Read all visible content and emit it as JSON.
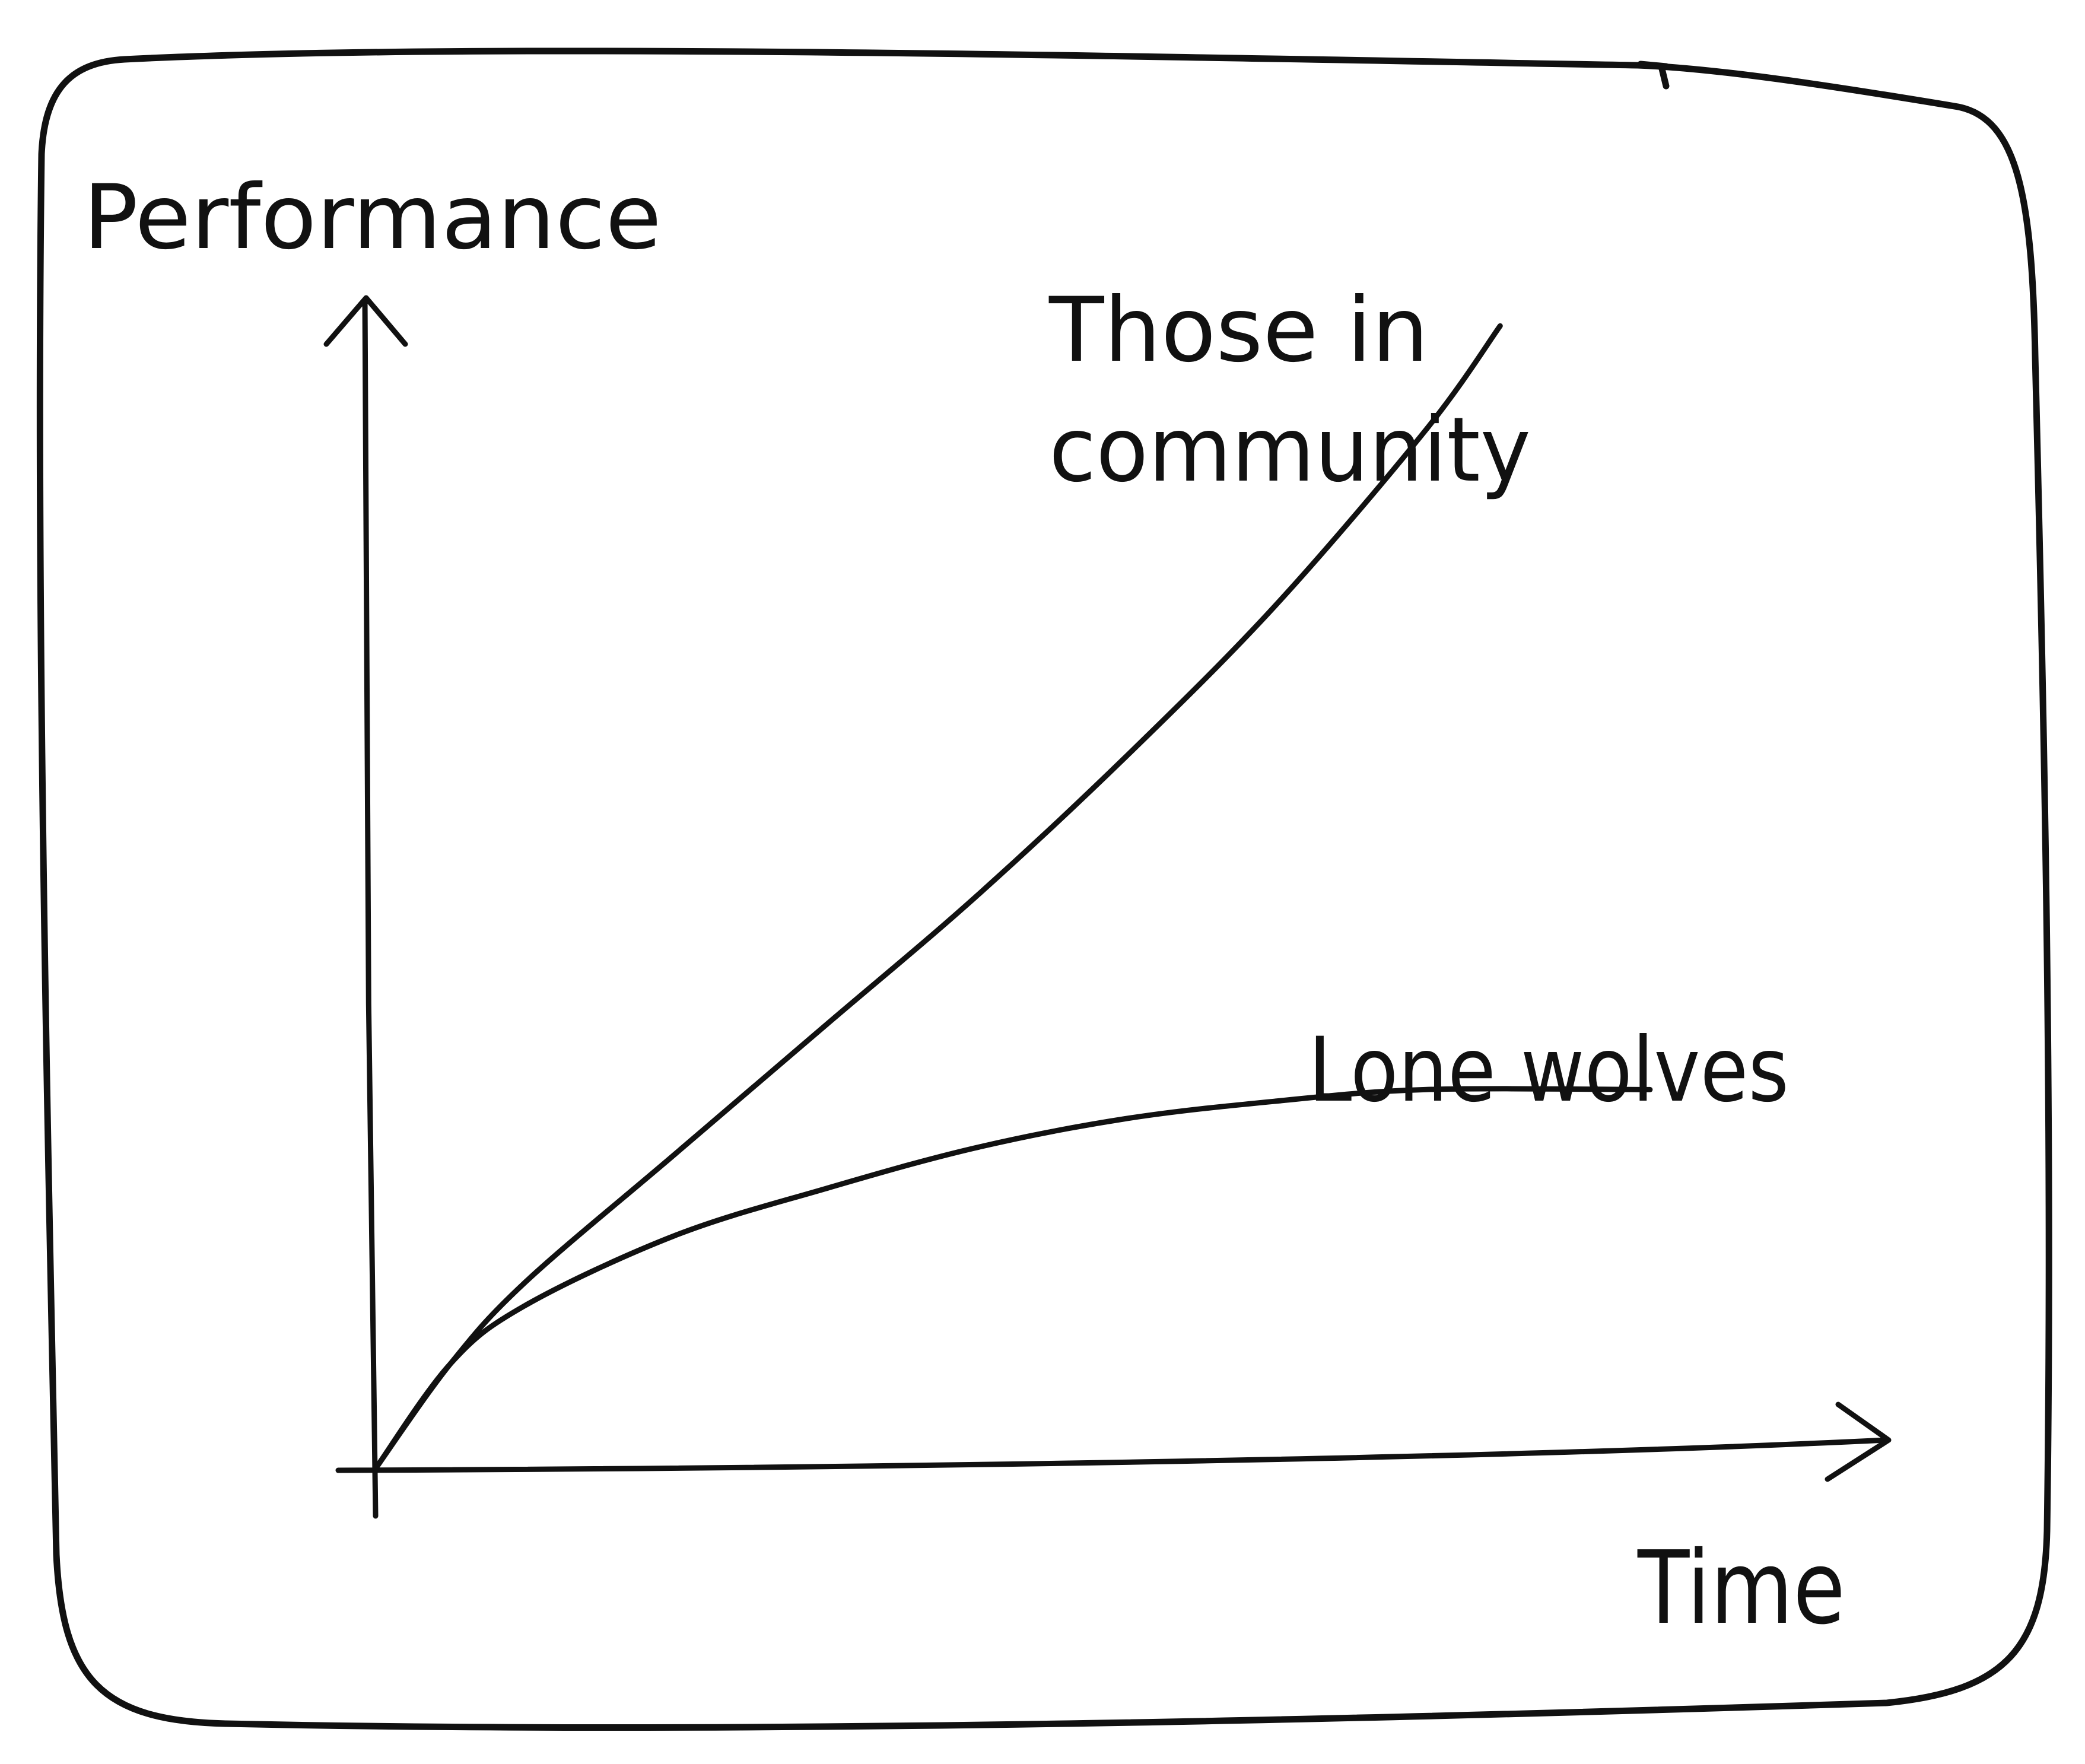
{
  "chart_data": {
    "type": "line",
    "ylabel": "Performance",
    "xlabel": "Time",
    "xlim": [
      0,
      10
    ],
    "ylim": [
      0,
      10
    ],
    "grid": false,
    "axes_numeric_labels": false,
    "series": [
      {
        "name": "Those in community",
        "x": [
          0,
          0.5,
          1,
          2,
          3,
          4,
          5,
          6,
          7,
          7.5
        ],
        "y": [
          0,
          0.9,
          1.6,
          2.7,
          3.8,
          4.9,
          6.1,
          7.4,
          8.9,
          9.8
        ]
      },
      {
        "name": "Lone wolves",
        "x": [
          0,
          0.5,
          1,
          2,
          3,
          4,
          5,
          6,
          7,
          8.5
        ],
        "y": [
          0,
          0.9,
          1.4,
          2.0,
          2.4,
          2.75,
          3.0,
          3.15,
          3.25,
          3.25
        ]
      }
    ]
  },
  "style": {
    "ink_color": "#111111",
    "background": "#ffffff"
  }
}
